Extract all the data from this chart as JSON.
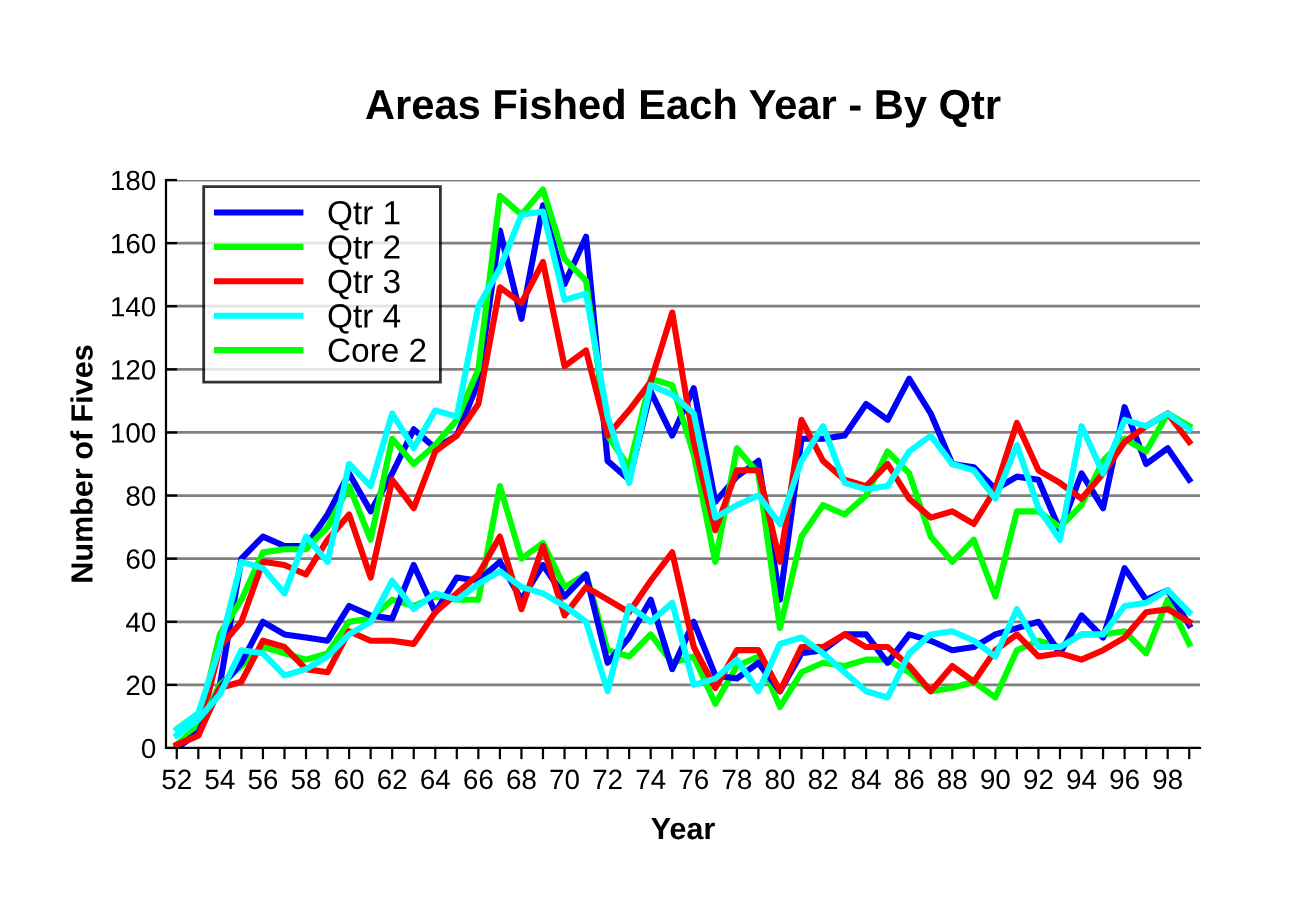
{
  "chart_data": {
    "type": "line",
    "title": "Areas Fished Each Year - By Qtr",
    "xlabel": "Year",
    "ylabel": "Number of Fives",
    "categories": [
      "52",
      null,
      "54",
      null,
      "56",
      null,
      "58",
      null,
      "60",
      null,
      "62",
      null,
      "64",
      null,
      "66",
      null,
      "68",
      null,
      "70",
      null,
      "72",
      null,
      "74",
      null,
      "76",
      null,
      "78",
      null,
      "80",
      null,
      "82",
      null,
      "84",
      null,
      "86",
      null,
      "88",
      null,
      "90",
      null,
      "92",
      null,
      "94",
      null,
      "96",
      null,
      "98",
      null
    ],
    "series": [
      {
        "name": "Qtr 1",
        "color": "#0000ff",
        "values": [
          0,
          5,
          20,
          60,
          67,
          64,
          64,
          74,
          87,
          75,
          87,
          101,
          95,
          99,
          116,
          164,
          136,
          172,
          147,
          162,
          91,
          85,
          113,
          99,
          114,
          78,
          86,
          91,
          47,
          98,
          98,
          99,
          109,
          104,
          117,
          106,
          90,
          89,
          82,
          86,
          85,
          69,
          87,
          76,
          108,
          90,
          95,
          85
        ]
      },
      {
        "name": "Qtr 2",
        "color": "#00ff00",
        "values": [
          1,
          7,
          36,
          47,
          62,
          63,
          63,
          70,
          83,
          66,
          98,
          90,
          96,
          104,
          120,
          175,
          169,
          177,
          155,
          148,
          99,
          89,
          117,
          115,
          93,
          59,
          95,
          87,
          38,
          67,
          77,
          74,
          80,
          94,
          87,
          67,
          59,
          66,
          48,
          75,
          75,
          70,
          77,
          91,
          98,
          94,
          106,
          102
        ]
      },
      {
        "name": "Qtr 3",
        "color": "#ff0000",
        "values": [
          1,
          4,
          32,
          40,
          59,
          58,
          55,
          66,
          74,
          54,
          85,
          76,
          94,
          99,
          109,
          146,
          141,
          154,
          121,
          126,
          99,
          107,
          116,
          138,
          97,
          69,
          88,
          88,
          59,
          104,
          91,
          85,
          83,
          90,
          79,
          73,
          75,
          71,
          82,
          103,
          88,
          84,
          79,
          87,
          97,
          102,
          106,
          97
        ]
      },
      {
        "name": "Qtr 4",
        "color": "#00ffff",
        "values": [
          6,
          11,
          32,
          59,
          57,
          49,
          67,
          59,
          90,
          83,
          106,
          95,
          107,
          105,
          140,
          152,
          169,
          170,
          142,
          144,
          105,
          84,
          115,
          112,
          106,
          73,
          77,
          80,
          71,
          91,
          102,
          84,
          82,
          83,
          94,
          99,
          90,
          88,
          79,
          96,
          76,
          66,
          102,
          87,
          104,
          102,
          106,
          101
        ]
      },
      {
        "name": "Core 2",
        "color": "#00ff00",
        "values": [
          1,
          6,
          20,
          26,
          32,
          30,
          28,
          30,
          40,
          41,
          47,
          45,
          48,
          47,
          47,
          83,
          60,
          65,
          51,
          55,
          31,
          29,
          36,
          27,
          29,
          14,
          26,
          29,
          13,
          24,
          27,
          26,
          28,
          28,
          24,
          18,
          19,
          21,
          16,
          31,
          34,
          32,
          36,
          36,
          37,
          30,
          47,
          33
        ]
      },
      {
        "color": "#0000ff",
        "values": [
          0,
          5,
          19,
          27,
          40,
          36,
          35,
          34,
          45,
          42,
          41,
          58,
          43,
          54,
          53,
          59,
          47,
          58,
          48,
          55,
          27,
          35,
          47,
          25,
          40,
          23,
          22,
          27,
          18,
          30,
          31,
          36,
          36,
          27,
          36,
          34,
          31,
          32,
          36,
          38,
          40,
          30,
          42,
          35,
          57,
          47,
          50,
          39
        ]
      },
      {
        "color": "#ff0000",
        "values": [
          1,
          4,
          19,
          21,
          34,
          32,
          25,
          24,
          37,
          34,
          34,
          33,
          43,
          49,
          55,
          67,
          44,
          64,
          42,
          51,
          47,
          43,
          53,
          62,
          32,
          19,
          31,
          31,
          18,
          32,
          32,
          36,
          32,
          32,
          26,
          18,
          26,
          21,
          31,
          36,
          29,
          30,
          28,
          31,
          35,
          43,
          44,
          40
        ]
      },
      {
        "color": "#00ffff",
        "values": [
          4,
          9,
          17,
          31,
          30,
          23,
          25,
          29,
          36,
          40,
          53,
          44,
          49,
          47,
          52,
          56,
          51,
          49,
          45,
          40,
          18,
          45,
          40,
          46,
          20,
          22,
          28,
          18,
          33,
          35,
          30,
          24,
          18,
          16,
          30,
          36,
          37,
          34,
          29,
          44,
          32,
          32,
          36,
          36,
          45,
          46,
          50,
          43
        ]
      }
    ],
    "ylim": [
      0,
      180
    ],
    "yticks": [
      0,
      20,
      40,
      60,
      80,
      100,
      120,
      140,
      160,
      180
    ],
    "grid": "y",
    "legend": "top left",
    "marker": "none",
    "line_style": "solid"
  }
}
